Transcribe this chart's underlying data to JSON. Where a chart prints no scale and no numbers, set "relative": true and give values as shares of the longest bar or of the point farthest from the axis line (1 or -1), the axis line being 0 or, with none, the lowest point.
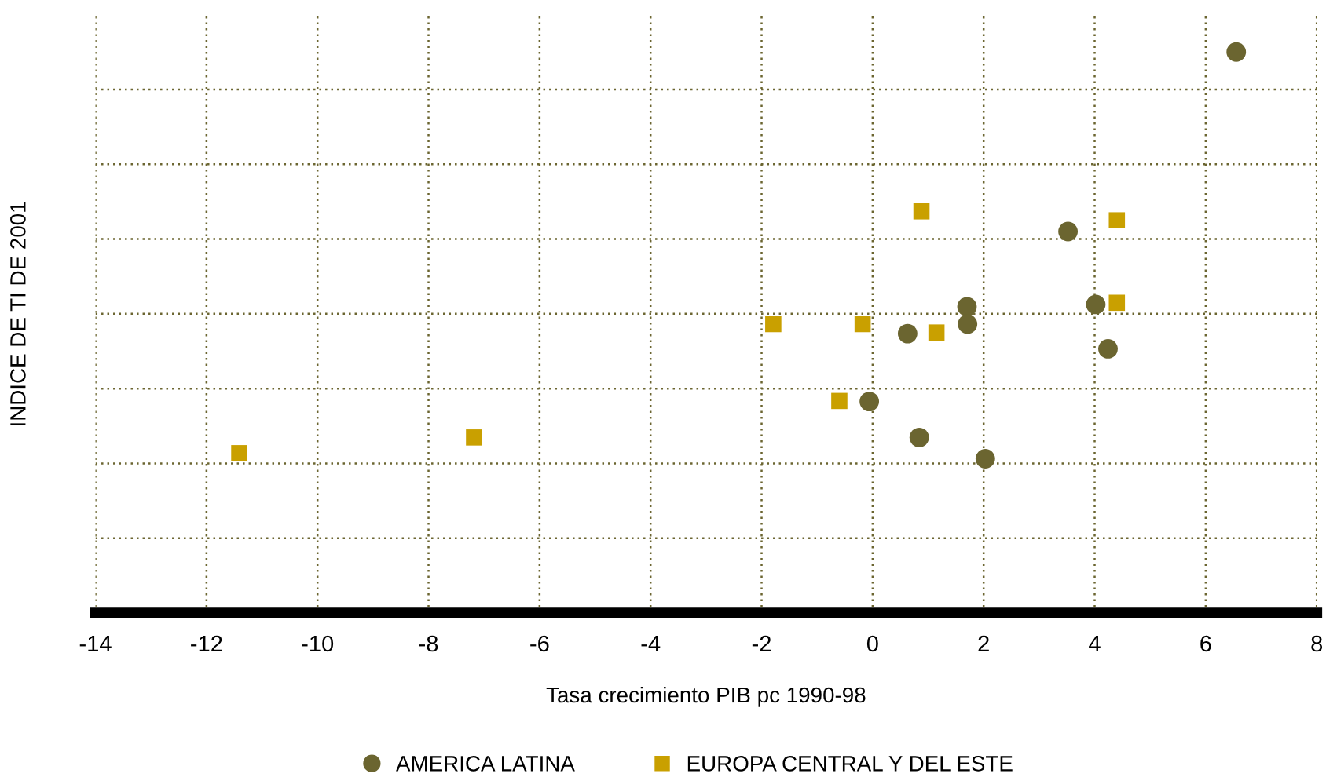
{
  "chart_data": {
    "type": "scatter",
    "relative": true,
    "xlabel": "Tasa crecimiento PIB pc 1990-98",
    "ylabel": "INDICE DE TI DE 2001",
    "xlim": [
      -14,
      8
    ],
    "xticks": [
      -14,
      -12,
      -10,
      -8,
      -6,
      -4,
      -2,
      0,
      2,
      4,
      6,
      8
    ],
    "grid": true,
    "legend": "bottom",
    "series": [
      {
        "name": "AMERICA LATINA",
        "color": "#6b6530",
        "marker": "circle",
        "x": [
          6.55,
          3.52,
          1.7,
          1.71,
          0.63,
          4.02,
          4.24,
          -0.06,
          0.84,
          2.03
        ],
        "values": [
          1.0,
          0.68,
          0.546,
          0.515,
          0.498,
          0.55,
          0.471,
          0.377,
          0.313,
          0.275
        ]
      },
      {
        "name": "EUROPA CENTRAL Y DEL ESTE",
        "color": "#c9a000",
        "marker": "square",
        "x": [
          0.88,
          4.4,
          4.4,
          -1.79,
          -0.18,
          1.15,
          -0.6,
          -11.41,
          -7.18
        ],
        "values": [
          0.716,
          0.7,
          0.553,
          0.515,
          0.515,
          0.5,
          0.378,
          0.285,
          0.313
        ]
      }
    ]
  }
}
